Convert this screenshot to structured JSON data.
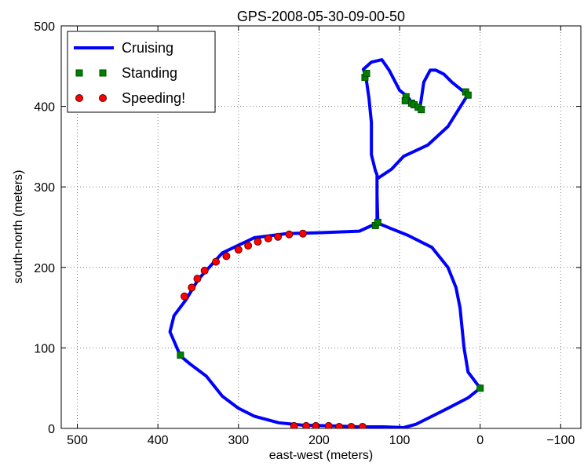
{
  "chart_data": {
    "type": "line",
    "title": "GPS-2008-05-30-09-00-50",
    "xlabel": "east-west (meters)",
    "ylabel": "south-north (meters)",
    "xlim": [
      520,
      -125
    ],
    "ylim": [
      0,
      500
    ],
    "x_ticks": [
      500,
      400,
      300,
      200,
      100,
      0,
      -100
    ],
    "x_tick_labels": [
      "500",
      "400",
      "300",
      "200",
      "100",
      "0",
      "−100"
    ],
    "y_ticks": [
      0,
      100,
      200,
      300,
      400,
      500
    ],
    "y_tick_labels": [
      "0",
      "100",
      "200",
      "300",
      "400",
      "500"
    ],
    "grid": true,
    "legend_position": "top-left",
    "series": [
      {
        "name": "Cruising",
        "kind": "line",
        "color": "#0000ff",
        "points": [
          [
            0,
            50
          ],
          [
            15,
            70
          ],
          [
            20,
            100
          ],
          [
            25,
            150
          ],
          [
            30,
            175
          ],
          [
            40,
            200
          ],
          [
            60,
            225
          ],
          [
            90,
            240
          ],
          [
            110,
            248
          ],
          [
            127,
            255
          ],
          [
            128,
            290
          ],
          [
            128,
            315
          ],
          [
            130,
            320
          ],
          [
            135,
            340
          ],
          [
            135,
            380
          ],
          [
            138,
            410
          ],
          [
            142,
            438
          ],
          [
            145,
            446
          ],
          [
            135,
            455
          ],
          [
            122,
            458
          ],
          [
            113,
            445
          ],
          [
            100,
            420
          ],
          [
            90,
            412
          ],
          [
            85,
            405
          ],
          [
            80,
            400
          ],
          [
            75,
            396
          ],
          [
            70,
            430
          ],
          [
            62,
            445
          ],
          [
            55,
            445
          ],
          [
            45,
            440
          ],
          [
            35,
            430
          ],
          [
            20,
            418
          ],
          [
            15,
            415
          ],
          [
            40,
            375
          ],
          [
            65,
            352
          ],
          [
            80,
            345
          ],
          [
            95,
            338
          ],
          [
            110,
            322
          ],
          [
            128,
            310
          ],
          [
            128,
            255
          ],
          [
            150,
            245
          ],
          [
            200,
            243
          ],
          [
            240,
            242
          ],
          [
            280,
            237
          ],
          [
            320,
            218
          ],
          [
            350,
            185
          ],
          [
            365,
            160
          ],
          [
            380,
            140
          ],
          [
            385,
            120
          ],
          [
            372,
            90
          ],
          [
            360,
            80
          ],
          [
            340,
            65
          ],
          [
            320,
            40
          ],
          [
            300,
            25
          ],
          [
            280,
            15
          ],
          [
            250,
            7
          ],
          [
            220,
            4
          ],
          [
            180,
            3
          ],
          [
            150,
            2
          ],
          [
            120,
            2
          ],
          [
            95,
            1
          ],
          [
            80,
            5
          ],
          [
            60,
            15
          ],
          [
            40,
            25
          ],
          [
            15,
            38
          ],
          [
            0,
            50
          ]
        ]
      },
      {
        "name": "Standing",
        "kind": "marker",
        "color": "#008000",
        "points": [
          [
            0,
            50
          ],
          [
            372,
            91
          ],
          [
            130,
            252
          ],
          [
            127,
            256
          ],
          [
            143,
            436
          ],
          [
            141,
            441
          ],
          [
            92,
            412
          ],
          [
            93,
            407
          ],
          [
            85,
            404
          ],
          [
            82,
            402
          ],
          [
            77,
            399
          ],
          [
            73,
            396
          ],
          [
            18,
            418
          ],
          [
            15,
            414
          ]
        ]
      },
      {
        "name": "Speeding!",
        "kind": "marker",
        "color": "#ff0000",
        "points": [
          [
            367,
            164
          ],
          [
            358,
            175
          ],
          [
            351,
            186
          ],
          [
            342,
            196
          ],
          [
            328,
            207
          ],
          [
            315,
            214
          ],
          [
            300,
            222
          ],
          [
            288,
            227
          ],
          [
            276,
            232
          ],
          [
            263,
            236
          ],
          [
            251,
            238
          ],
          [
            237,
            241
          ],
          [
            220,
            242
          ],
          [
            231,
            3
          ],
          [
            216,
            3
          ],
          [
            204,
            3
          ],
          [
            188,
            3
          ],
          [
            175,
            2
          ],
          [
            160,
            2
          ],
          [
            146,
            2
          ]
        ]
      }
    ]
  }
}
